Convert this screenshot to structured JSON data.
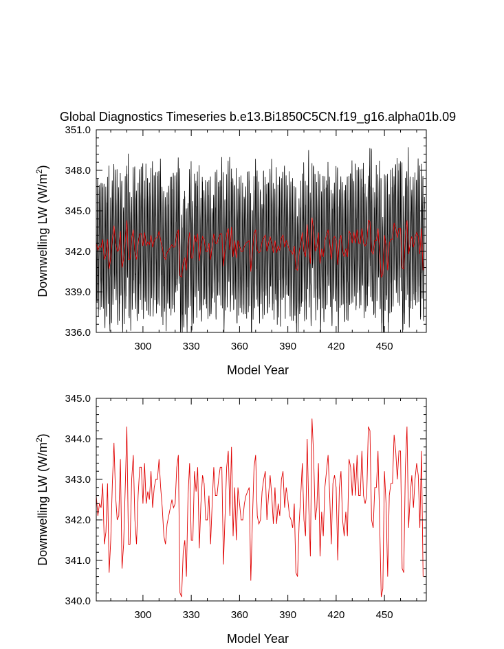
{
  "title": "Global Diagnostics Timeseries b.e13.Bi1850C5CN.f19_g16.alpha01b.09",
  "colors": {
    "monthly": "#000000",
    "annual": "#e00000",
    "axis": "#000000"
  },
  "chart_data": [
    {
      "type": "line",
      "xlabel": "Model Year",
      "ylabel": "Downwelling LW (W/m",
      "ylabel_sup": "2",
      "ylabel_end": ")",
      "xlim": [
        271,
        476
      ],
      "ylim": [
        336.0,
        351.0
      ],
      "xticks": [
        300,
        330,
        360,
        390,
        420,
        450
      ],
      "xtick_labels": [
        "300",
        "330",
        "360",
        "390",
        "420",
        "450"
      ],
      "yticks": [
        336,
        339,
        342,
        345,
        348,
        351
      ],
      "ytick_labels": [
        "336.0",
        "339.0",
        "342.0",
        "345.0",
        "348.0",
        "351.0"
      ],
      "series": [
        {
          "style": "monthly",
          "mean": 342.6,
          "amplitude": 4.6,
          "noise": 1.2
        },
        {
          "style": "annual"
        }
      ]
    },
    {
      "type": "line",
      "xlabel": "Model Year",
      "ylabel": "Downwelling LW (W/m",
      "ylabel_sup": "2",
      "ylabel_end": ")",
      "xlim": [
        271,
        476
      ],
      "ylim": [
        340.0,
        345.0
      ],
      "xticks": [
        300,
        330,
        360,
        390,
        420,
        450
      ],
      "xtick_labels": [
        "300",
        "330",
        "360",
        "390",
        "420",
        "450"
      ],
      "yticks": [
        340,
        341,
        342,
        343,
        344,
        345
      ],
      "ytick_labels": [
        "340.0",
        "341.0",
        "342.0",
        "343.0",
        "344.0",
        "345.0"
      ],
      "series": [
        {
          "style": "annual",
          "x_start": 271,
          "x_step": 1,
          "values": [
            342.6,
            342.1,
            342.4,
            342.3,
            342.9,
            341.4,
            341.7,
            342.9,
            340.7,
            341.5,
            342.9,
            343.9,
            342.6,
            342.0,
            342.1,
            343.5,
            340.8,
            341.4,
            342.8,
            344.3,
            341.4,
            341.4,
            343.0,
            343.6,
            342.0,
            341.4,
            342.6,
            343.3,
            343.3,
            342.4,
            343.4,
            342.4,
            342.7,
            342.5,
            343.2,
            342.3,
            342.8,
            343.0,
            343.0,
            343.5,
            342.8,
            342.3,
            341.6,
            341.4,
            341.9,
            342.1,
            342.3,
            342.5,
            342.3,
            342.4,
            343.3,
            343.6,
            340.2,
            340.1,
            341.2,
            341.5,
            340.6,
            342.6,
            343.4,
            341.5,
            341.5,
            343.2,
            342.7,
            343.3,
            341.3,
            342.4,
            343.1,
            342.9,
            342.0,
            342.0,
            342.6,
            341.4,
            342.4,
            343.3,
            342.6,
            342.6,
            343.0,
            343.3,
            343.3,
            340.9,
            342.1,
            343.3,
            343.7,
            342.1,
            343.8,
            341.6,
            342.8,
            341.5,
            342.8,
            342.4,
            342.0,
            342.0,
            342.4,
            342.6,
            342.7,
            342.8,
            340.5,
            342.0,
            343.3,
            343.6,
            342.1,
            341.9,
            342.0,
            342.7,
            343.0,
            343.2,
            342.0,
            342.6,
            343.1,
            342.6,
            341.9,
            342.8,
            341.9,
            342.4,
            342.1,
            343.0,
            343.2,
            342.3,
            342.8,
            342.5,
            342.1,
            342.0,
            341.8,
            342.4,
            340.7,
            340.6,
            341.9,
            342.6,
            343.4,
            342.0,
            341.6,
            344.0,
            342.3,
            341.1,
            344.5,
            343.6,
            342.0,
            342.3,
            343.4,
            341.1,
            342.2,
            341.6,
            342.8,
            343.2,
            343.6,
            342.6,
            341.4,
            342.9,
            343.1,
            342.8,
            341.0,
            342.8,
            343.2,
            342.0,
            341.6,
            342.2,
            341.6,
            343.5,
            343.3,
            342.6,
            343.4,
            342.6,
            343.6,
            342.6,
            342.6,
            343.7,
            342.6,
            342.4,
            342.6,
            344.3,
            344.2,
            342.0,
            341.8,
            342.8,
            342.8,
            343.7,
            342.0,
            340.1,
            340.3,
            343.2,
            342.4,
            340.6,
            342.6,
            342.9,
            342.9,
            344.1,
            343.7,
            343.0,
            343.7,
            343.7,
            340.8,
            340.7,
            343.3,
            344.3,
            341.8,
            342.6,
            343.1,
            342.3,
            343.0,
            343.4,
            343.1,
            341.8,
            343.7,
            340.6
          ]
        }
      ]
    }
  ]
}
